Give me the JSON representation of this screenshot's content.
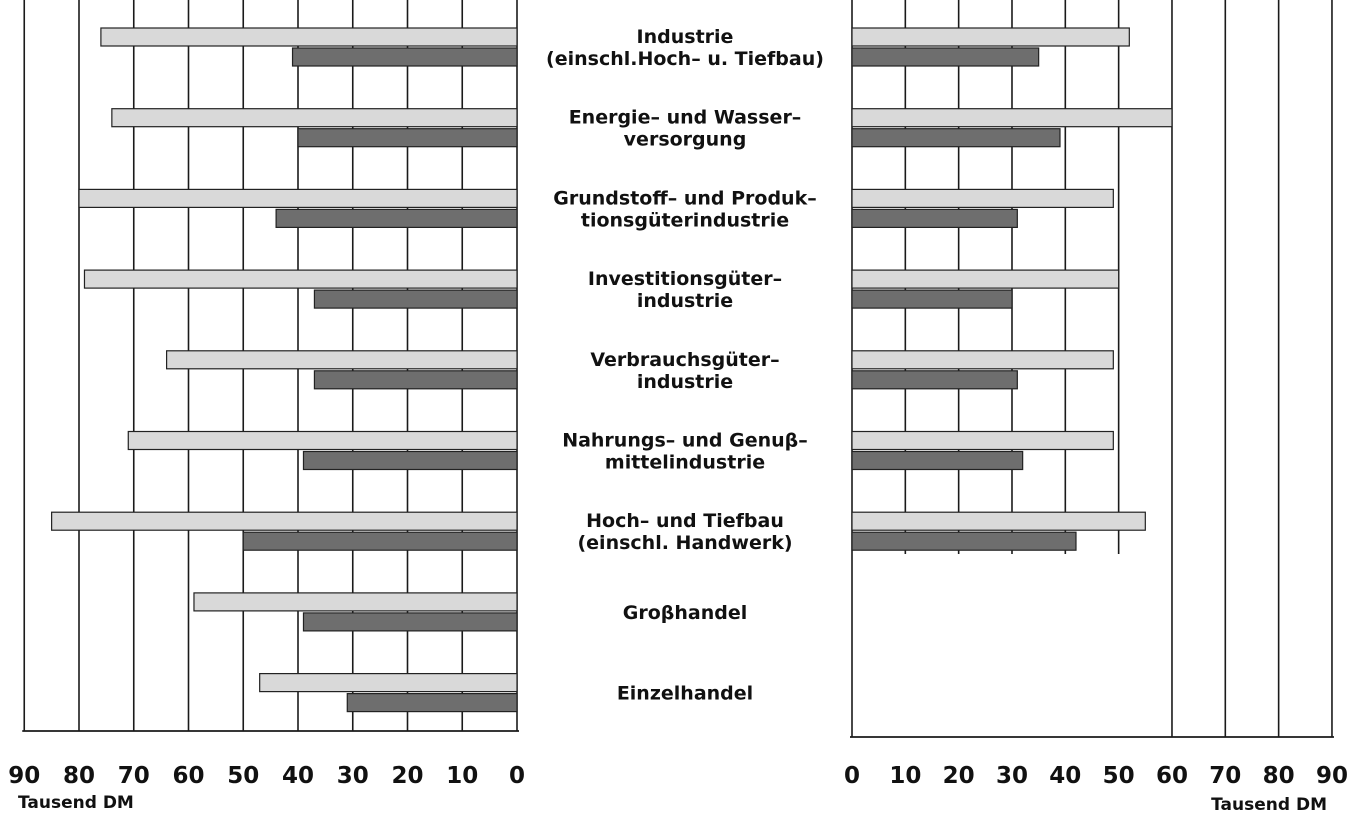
{
  "chart_data": [
    {
      "type": "bar",
      "orientation": "horizontal",
      "direction": "right-to-left",
      "xlabel": "Tausend DM",
      "xlim": [
        0,
        90
      ],
      "ticks": [
        "0",
        "10",
        "20",
        "30",
        "40",
        "50",
        "60",
        "70",
        "80",
        "90"
      ],
      "grid": true,
      "categories": [
        "Industrie\n(einschl.Hoch– u. Tiefbau)",
        "Energie– und Wasser–\nversorgung",
        "Grundstoff– und Produk–\ntionsgüterindustrie",
        "Investitionsgüter–\nindustrie",
        "Verbrauchsgüter–\nindustrie",
        "Nahrungs– und Genuβ–\nmittelindustrie",
        "Hoch– und Tiefbau\n(einschl. Handwerk)",
        "Groβhandel",
        "Einzelhandel"
      ],
      "series": [
        {
          "color": "#d9d9d9",
          "values": [
            76,
            74,
            80,
            79,
            64,
            71,
            85,
            59,
            47
          ]
        },
        {
          "color": "#6e6e6e",
          "values": [
            41,
            40,
            44,
            37,
            37,
            39,
            50,
            39,
            31
          ]
        }
      ]
    },
    {
      "type": "bar",
      "orientation": "horizontal",
      "direction": "left-to-right",
      "xlabel": "Tausend DM",
      "xlim": [
        0,
        90
      ],
      "ticks": [
        "0",
        "10",
        "20",
        "30",
        "40",
        "50",
        "60",
        "70",
        "80",
        "90"
      ],
      "grid": true,
      "categories": [
        "Industrie\n(einschl.Hoch– u. Tiefbau)",
        "Energie– und Wasser–\nversorgung",
        "Grundstoff– und Produk–\ntionsgüterindustrie",
        "Investitionsgüter–\nindustrie",
        "Verbrauchsgüter–\nindustrie",
        "Nahrungs– und Genuβ–\nmittelindustrie",
        "Hoch– und Tiefbau\n(einschl. Handwerk)"
      ],
      "series": [
        {
          "color": "#d9d9d9",
          "values": [
            52,
            60,
            49,
            50,
            49,
            49,
            55
          ]
        },
        {
          "color": "#6e6e6e",
          "values": [
            35,
            39,
            31,
            30,
            31,
            32,
            42
          ]
        }
      ]
    }
  ]
}
